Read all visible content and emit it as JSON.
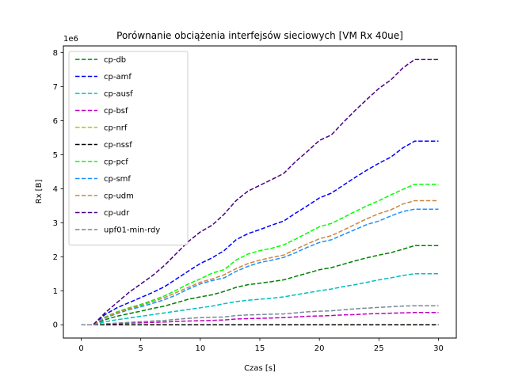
{
  "chart_data": {
    "type": "line",
    "title": "Porównanie obciążenia interfejsów sieciowych [VM Rx 40ue]",
    "xlabel": "Czas [s]",
    "ylabel": "Rx [B]",
    "y_offset_label": "1e6",
    "xlim": [
      -1.5,
      31.5
    ],
    "ylim": [
      -0.39,
      8.2
    ],
    "x_ticks": [
      0,
      5,
      10,
      15,
      20,
      25,
      30
    ],
    "x_tick_labels": [
      "0",
      "5",
      "10",
      "15",
      "20",
      "25",
      "30"
    ],
    "y_ticks": [
      0,
      1,
      2,
      3,
      4,
      5,
      6,
      7,
      8
    ],
    "y_tick_labels": [
      "0",
      "1",
      "2",
      "3",
      "4",
      "5",
      "6",
      "7",
      "8"
    ],
    "y_scale": 1000000,
    "grid": false,
    "legend_position": "top-left",
    "line_style": "dashed",
    "x": [
      0,
      1,
      2,
      3,
      4,
      5,
      6,
      7,
      8,
      9,
      10,
      11,
      12,
      13,
      14,
      15,
      16,
      17,
      18,
      19,
      20,
      21,
      22,
      23,
      24,
      25,
      26,
      27,
      28,
      29,
      30
    ],
    "series": [
      {
        "name": "cp-db",
        "color": "#008000",
        "values": [
          0,
          0,
          0.15,
          0.25,
          0.33,
          0.4,
          0.48,
          0.55,
          0.65,
          0.75,
          0.82,
          0.88,
          0.98,
          1.1,
          1.18,
          1.22,
          1.27,
          1.32,
          1.42,
          1.52,
          1.62,
          1.68,
          1.78,
          1.88,
          1.97,
          2.05,
          2.12,
          2.22,
          2.33,
          2.33,
          2.33
        ]
      },
      {
        "name": "cp-amf",
        "color": "#0000ff",
        "values": [
          0,
          0,
          0.3,
          0.5,
          0.65,
          0.8,
          0.95,
          1.12,
          1.35,
          1.58,
          1.8,
          1.97,
          2.18,
          2.5,
          2.68,
          2.8,
          2.93,
          3.05,
          3.28,
          3.5,
          3.73,
          3.87,
          4.1,
          4.33,
          4.55,
          4.75,
          4.93,
          5.2,
          5.4,
          5.4,
          5.4
        ]
      },
      {
        "name": "cp-ausf",
        "color": "#00bfbf",
        "values": [
          0,
          0,
          0.09,
          0.15,
          0.2,
          0.25,
          0.3,
          0.35,
          0.4,
          0.45,
          0.5,
          0.55,
          0.62,
          0.68,
          0.72,
          0.75,
          0.78,
          0.82,
          0.88,
          0.94,
          1.0,
          1.05,
          1.12,
          1.18,
          1.25,
          1.32,
          1.38,
          1.45,
          1.5,
          1.5,
          1.5
        ]
      },
      {
        "name": "cp-bsf",
        "color": "#bf00bf",
        "values": [
          0,
          0,
          0.02,
          0.03,
          0.05,
          0.06,
          0.07,
          0.08,
          0.1,
          0.11,
          0.12,
          0.13,
          0.14,
          0.17,
          0.18,
          0.19,
          0.2,
          0.21,
          0.23,
          0.25,
          0.26,
          0.27,
          0.29,
          0.3,
          0.32,
          0.33,
          0.34,
          0.35,
          0.36,
          0.36,
          0.36
        ]
      },
      {
        "name": "cp-nrf",
        "color": "#bfbf00",
        "values": [
          0,
          0,
          0,
          0,
          0,
          0,
          0,
          0,
          0,
          0,
          0,
          0,
          0,
          0,
          0,
          0,
          0,
          0,
          0,
          0,
          0,
          0,
          0,
          0,
          0,
          0,
          0,
          0,
          0,
          0,
          0
        ]
      },
      {
        "name": "cp-nssf",
        "color": "#000000",
        "values": [
          0,
          0,
          0,
          0,
          0,
          0,
          0,
          0,
          0,
          0,
          0,
          0,
          0,
          0,
          0,
          0,
          0,
          0,
          0,
          0,
          0,
          0,
          0,
          0,
          0,
          0,
          0,
          0,
          0,
          0,
          0
        ]
      },
      {
        "name": "cp-pcf",
        "color": "#00ff00",
        "values": [
          0,
          0,
          0.23,
          0.38,
          0.5,
          0.6,
          0.72,
          0.85,
          1.02,
          1.2,
          1.35,
          1.52,
          1.62,
          1.9,
          2.08,
          2.18,
          2.25,
          2.35,
          2.52,
          2.7,
          2.88,
          2.98,
          3.15,
          3.33,
          3.5,
          3.65,
          3.82,
          3.98,
          4.13,
          4.13,
          4.13
        ]
      },
      {
        "name": "cp-smf",
        "color": "#1e90ff",
        "values": [
          0,
          0,
          0.2,
          0.33,
          0.44,
          0.53,
          0.63,
          0.74,
          0.88,
          1.05,
          1.2,
          1.3,
          1.38,
          1.57,
          1.72,
          1.83,
          1.9,
          1.98,
          2.12,
          2.28,
          2.42,
          2.5,
          2.65,
          2.8,
          2.95,
          3.05,
          3.2,
          3.33,
          3.4,
          3.4,
          3.4
        ]
      },
      {
        "name": "cp-udm",
        "color": "#cd853f",
        "values": [
          0,
          0,
          0.22,
          0.35,
          0.47,
          0.57,
          0.68,
          0.8,
          0.95,
          1.1,
          1.25,
          1.35,
          1.47,
          1.65,
          1.8,
          1.9,
          1.98,
          2.05,
          2.22,
          2.38,
          2.53,
          2.62,
          2.78,
          2.95,
          3.12,
          3.27,
          3.38,
          3.55,
          3.65,
          3.65,
          3.65
        ]
      },
      {
        "name": "cp-udr",
        "color": "#4b0082",
        "values": [
          0,
          0,
          0.35,
          0.65,
          0.95,
          1.2,
          1.45,
          1.75,
          2.1,
          2.45,
          2.73,
          2.93,
          3.25,
          3.65,
          3.93,
          4.1,
          4.27,
          4.45,
          4.8,
          5.1,
          5.42,
          5.58,
          5.95,
          6.3,
          6.63,
          6.95,
          7.2,
          7.55,
          7.8,
          7.8,
          7.8
        ]
      },
      {
        "name": "upf01-min-rdy",
        "color": "#778899",
        "values": [
          0,
          0,
          0.03,
          0.05,
          0.07,
          0.09,
          0.11,
          0.13,
          0.16,
          0.19,
          0.21,
          0.22,
          0.23,
          0.27,
          0.29,
          0.3,
          0.31,
          0.32,
          0.35,
          0.38,
          0.4,
          0.41,
          0.44,
          0.47,
          0.49,
          0.51,
          0.53,
          0.55,
          0.56,
          0.56,
          0.56
        ]
      }
    ]
  }
}
